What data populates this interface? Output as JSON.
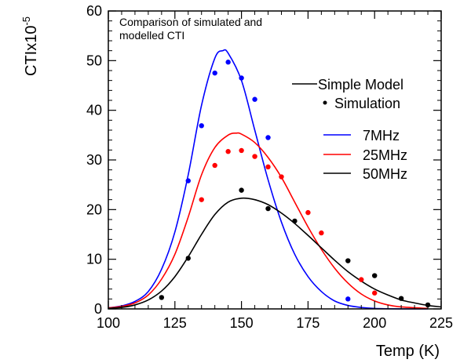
{
  "chart_data": {
    "type": "line",
    "annotation": [
      "Comparison of simulated and",
      "modelled CTI"
    ],
    "xlabel": "Temp (K)",
    "ylabel_base": "CTIx10",
    "ylabel_exp": "-5",
    "xlim": [
      100,
      225
    ],
    "ylim": [
      0,
      60
    ],
    "xticks": [
      100,
      125,
      150,
      175,
      200,
      225
    ],
    "yticks": [
      0,
      10,
      20,
      30,
      40,
      50,
      60
    ],
    "grid": false,
    "legend_position": "right",
    "legend_markers": [
      {
        "label": "Simple Model",
        "kind": "line"
      },
      {
        "label": "Simulation",
        "kind": "dot"
      }
    ],
    "series": [
      {
        "name": "7MHz",
        "color": "#0000ff",
        "model": {
          "x": [
            100,
            105,
            110,
            115,
            120,
            125,
            130,
            135,
            140,
            143,
            145,
            150,
            155,
            160,
            165,
            170,
            175,
            180,
            185,
            190,
            195,
            200,
            210,
            220
          ],
          "y": [
            0.2,
            0.6,
            1.5,
            3.5,
            8.0,
            15.5,
            27.0,
            41.0,
            50.5,
            52.0,
            51.5,
            46.0,
            36.0,
            26.0,
            17.5,
            11.0,
            6.5,
            3.5,
            1.6,
            0.7,
            0.3,
            0.1,
            0,
            0
          ]
        },
        "sim": {
          "x": [
            130,
            135,
            140,
            145,
            150,
            155,
            160,
            190
          ],
          "y": [
            25.8,
            36.9,
            47.5,
            49.7,
            46.5,
            42.2,
            34.5,
            2.0
          ]
        }
      },
      {
        "name": "25MHz",
        "color": "#ff0000",
        "model": {
          "x": [
            100,
            105,
            110,
            115,
            120,
            125,
            130,
            135,
            140,
            145,
            148,
            150,
            155,
            160,
            165,
            170,
            175,
            180,
            185,
            190,
            195,
            200,
            205,
            210,
            220
          ],
          "y": [
            0.2,
            0.5,
            1.2,
            2.8,
            6.0,
            11.0,
            18.5,
            27.0,
            32.5,
            35.0,
            35.4,
            35.2,
            33.5,
            30.5,
            26.5,
            21.5,
            16.5,
            12.0,
            8.2,
            5.2,
            3.0,
            1.6,
            0.8,
            0.4,
            0.1
          ]
        },
        "sim": {
          "x": [
            135,
            140,
            145,
            150,
            155,
            160,
            165,
            175,
            180,
            195,
            200
          ],
          "y": [
            22.0,
            28.9,
            31.7,
            31.9,
            30.7,
            28.6,
            26.6,
            19.4,
            15.3,
            5.9,
            3.2
          ]
        }
      },
      {
        "name": "50MHz",
        "color": "#000000",
        "model": {
          "x": [
            100,
            105,
            110,
            115,
            120,
            125,
            130,
            135,
            140,
            145,
            150,
            155,
            160,
            165,
            170,
            175,
            180,
            185,
            190,
            195,
            200,
            205,
            210,
            215,
            220,
            225
          ],
          "y": [
            0.1,
            0.3,
            0.8,
            1.8,
            3.6,
            6.5,
            10.5,
            15.0,
            19.0,
            21.5,
            22.3,
            22.0,
            21.0,
            19.3,
            17.2,
            14.8,
            12.3,
            9.8,
            7.5,
            5.6,
            4.0,
            2.8,
            1.8,
            1.2,
            0.7,
            0.4
          ]
        },
        "sim": {
          "x": [
            120,
            130,
            150,
            160,
            170,
            190,
            200,
            210,
            220
          ],
          "y": [
            2.3,
            10.2,
            23.9,
            20.2,
            17.7,
            9.7,
            6.7,
            2.1,
            0.8
          ]
        }
      }
    ]
  }
}
